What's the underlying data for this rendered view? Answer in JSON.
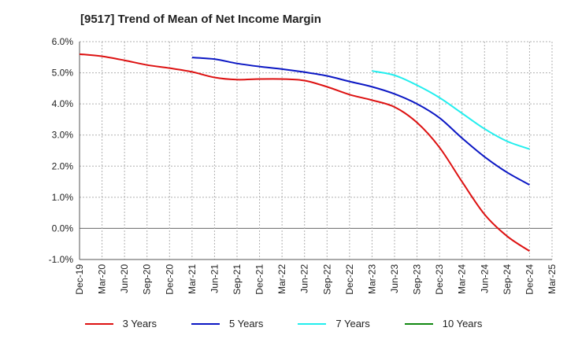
{
  "chart_data": {
    "type": "line",
    "title": "[9517]  Trend of Mean of Net Income Margin",
    "y_ticks": [
      "6.0%",
      "5.0%",
      "4.0%",
      "3.0%",
      "2.0%",
      "1.0%",
      "0.0%",
      "-1.0%"
    ],
    "ylim": [
      -1.0,
      6.0
    ],
    "x_ticks": [
      "Dec-19",
      "Mar-20",
      "Jun-20",
      "Sep-20",
      "Dec-20",
      "Mar-21",
      "Jun-21",
      "Sep-21",
      "Dec-21",
      "Mar-22",
      "Jun-22",
      "Sep-22",
      "Dec-22",
      "Mar-23",
      "Jun-23",
      "Sep-23",
      "Dec-23",
      "Mar-24",
      "Jun-24",
      "Sep-24",
      "Dec-24",
      "Mar-25"
    ],
    "grid": true,
    "legend_placement": "bottom",
    "series": [
      {
        "name": "3 Years",
        "color": "#dd1111",
        "x": [
          "Dec-19",
          "Mar-20",
          "Jun-20",
          "Sep-20",
          "Dec-20",
          "Mar-21",
          "Jun-21",
          "Sep-21",
          "Dec-21",
          "Mar-22",
          "Jun-22",
          "Sep-22",
          "Dec-22",
          "Mar-23",
          "Jun-23",
          "Sep-23",
          "Dec-23",
          "Mar-24",
          "Jun-24",
          "Sep-24",
          "Dec-24"
        ],
        "values": [
          5.6,
          5.53,
          5.4,
          5.25,
          5.15,
          5.03,
          4.85,
          4.78,
          4.8,
          4.8,
          4.75,
          4.55,
          4.3,
          4.12,
          3.9,
          3.4,
          2.6,
          1.5,
          0.45,
          -0.25,
          -0.73
        ]
      },
      {
        "name": "5 Years",
        "color": "#0b17c4",
        "x": [
          "Mar-21",
          "Jun-21",
          "Sep-21",
          "Dec-21",
          "Mar-22",
          "Jun-22",
          "Sep-22",
          "Dec-22",
          "Mar-23",
          "Jun-23",
          "Sep-23",
          "Dec-23",
          "Mar-24",
          "Jun-24",
          "Sep-24",
          "Dec-24"
        ],
        "values": [
          5.49,
          5.44,
          5.3,
          5.2,
          5.12,
          5.02,
          4.9,
          4.72,
          4.55,
          4.32,
          4.0,
          3.55,
          2.9,
          2.3,
          1.8,
          1.4
        ]
      },
      {
        "name": "7 Years",
        "color": "#22eeee",
        "x": [
          "Mar-23",
          "Jun-23",
          "Sep-23",
          "Dec-23",
          "Mar-24",
          "Jun-24",
          "Sep-24",
          "Dec-24"
        ],
        "values": [
          5.06,
          4.92,
          4.6,
          4.2,
          3.7,
          3.2,
          2.8,
          2.55
        ]
      },
      {
        "name": "10 Years",
        "color": "#118811",
        "x": [],
        "values": []
      }
    ]
  }
}
